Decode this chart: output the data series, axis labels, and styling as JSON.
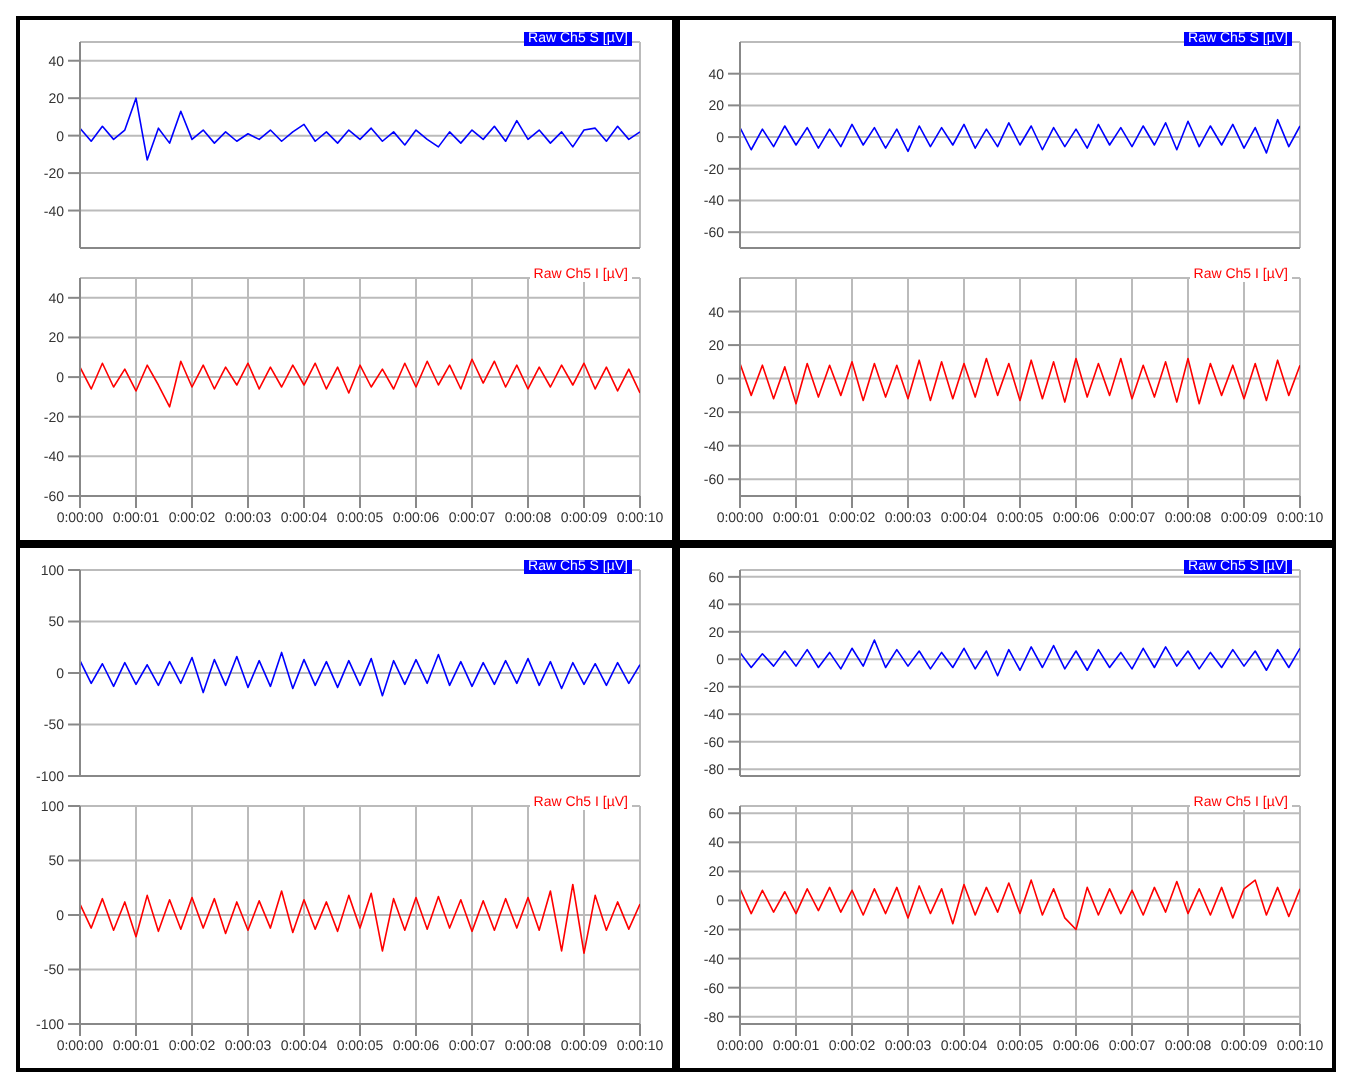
{
  "chart_data": [
    {
      "type": "line",
      "x": [
        0,
        0.2,
        0.4,
        0.6,
        0.8,
        1,
        1.2,
        1.4,
        1.6,
        1.8,
        2,
        2.2,
        2.4,
        2.6,
        2.8,
        3,
        3.2,
        3.4,
        3.6,
        3.8,
        4,
        4.2,
        4.4,
        4.6,
        4.8,
        5,
        5.2,
        5.4,
        5.6,
        5.8,
        6,
        6.2,
        6.4,
        6.6,
        6.8,
        7,
        7.2,
        7.4,
        7.6,
        7.8,
        8,
        8.2,
        8.4,
        8.6,
        8.8,
        9,
        9.2,
        9.4,
        9.6,
        9.8,
        10
      ],
      "series": [
        {
          "name": "Raw Ch5 S [µV]",
          "color": "#0000ff",
          "values": [
            4,
            -3,
            5,
            -2,
            3,
            20,
            -13,
            4,
            -4,
            13,
            -2,
            3,
            -4,
            2,
            -3,
            1,
            -2,
            3,
            -3,
            2,
            6,
            -3,
            2,
            -4,
            3,
            -2,
            4,
            -3,
            2,
            -5,
            3,
            -2,
            -6,
            2,
            -4,
            3,
            -2,
            5,
            -3,
            8,
            -2,
            3,
            -4,
            2,
            -6,
            3,
            4,
            -3,
            5,
            -2,
            2
          ]
        }
      ],
      "xlim": [
        0,
        10
      ],
      "xticks": [
        {
          "value": 0,
          "label": null
        },
        {
          "value": 1,
          "label": null
        },
        {
          "value": 2,
          "label": null
        },
        {
          "value": 3,
          "label": null
        },
        {
          "value": 4,
          "label": null
        },
        {
          "value": 5,
          "label": null
        },
        {
          "value": 6,
          "label": null
        },
        {
          "value": 7,
          "label": null
        },
        {
          "value": 8,
          "label": null
        },
        {
          "value": 9,
          "label": null
        },
        {
          "value": 10,
          "label": null
        }
      ],
      "ylim": [
        -60,
        50
      ],
      "yticks": [
        -40,
        -20,
        0,
        20,
        40
      ],
      "grid": true,
      "legend": "top right",
      "tick_labels": "y"
    },
    {
      "type": "line",
      "x": [
        0,
        0.2,
        0.4,
        0.6,
        0.8,
        1,
        1.2,
        1.4,
        1.6,
        1.8,
        2,
        2.2,
        2.4,
        2.6,
        2.8,
        3,
        3.2,
        3.4,
        3.6,
        3.8,
        4,
        4.2,
        4.4,
        4.6,
        4.8,
        5,
        5.2,
        5.4,
        5.6,
        5.8,
        6,
        6.2,
        6.4,
        6.6,
        6.8,
        7,
        7.2,
        7.4,
        7.6,
        7.8,
        8,
        8.2,
        8.4,
        8.6,
        8.8,
        9,
        9.2,
        9.4,
        9.6,
        9.8,
        10
      ],
      "series": [
        {
          "name": "Raw Ch5 I [µV]",
          "color": "#ff0000",
          "values": [
            5,
            -6,
            7,
            -5,
            4,
            -7,
            6,
            -4,
            -15,
            8,
            -5,
            6,
            -6,
            5,
            -4,
            7,
            -6,
            5,
            -5,
            6,
            -4,
            7,
            -6,
            5,
            -8,
            6,
            -5,
            4,
            -6,
            7,
            -5,
            8,
            -4,
            6,
            -6,
            9,
            -3,
            8,
            -5,
            6,
            -6,
            5,
            -5,
            6,
            -4,
            7,
            -6,
            5,
            -7,
            4,
            -8
          ]
        }
      ],
      "xlim": [
        0,
        10
      ],
      "xticks": [
        {
          "value": 0,
          "label": "0:00:00"
        },
        {
          "value": 1,
          "label": "0:00:01"
        },
        {
          "value": 2,
          "label": "0:00:02"
        },
        {
          "value": 3,
          "label": "0:00:03"
        },
        {
          "value": 4,
          "label": "0:00:04"
        },
        {
          "value": 5,
          "label": "0:00:05"
        },
        {
          "value": 6,
          "label": "0:00:06"
        },
        {
          "value": 7,
          "label": "0:00:07"
        },
        {
          "value": 8,
          "label": "0:00:08"
        },
        {
          "value": 9,
          "label": "0:00:09"
        },
        {
          "value": 10,
          "label": "0:00:10"
        }
      ],
      "ylim": [
        -60,
        50
      ],
      "yticks": [
        -60,
        -40,
        -20,
        0,
        20,
        40
      ],
      "grid": true,
      "legend": "top right"
    },
    {
      "type": "line",
      "x": [
        0,
        0.2,
        0.4,
        0.6,
        0.8,
        1,
        1.2,
        1.4,
        1.6,
        1.8,
        2,
        2.2,
        2.4,
        2.6,
        2.8,
        3,
        3.2,
        3.4,
        3.6,
        3.8,
        4,
        4.2,
        4.4,
        4.6,
        4.8,
        5,
        5.2,
        5.4,
        5.6,
        5.8,
        6,
        6.2,
        6.4,
        6.6,
        6.8,
        7,
        7.2,
        7.4,
        7.6,
        7.8,
        8,
        8.2,
        8.4,
        8.6,
        8.8,
        9,
        9.2,
        9.4,
        9.6,
        9.8,
        10
      ],
      "series": [
        {
          "name": "Raw Ch5 S [µV]",
          "color": "#0000ff",
          "values": [
            6,
            -8,
            5,
            -6,
            7,
            -5,
            6,
            -7,
            5,
            -6,
            8,
            -5,
            6,
            -7,
            5,
            -9,
            7,
            -6,
            6,
            -5,
            8,
            -7,
            5,
            -6,
            9,
            -5,
            7,
            -8,
            6,
            -6,
            5,
            -7,
            8,
            -5,
            6,
            -6,
            7,
            -5,
            9,
            -8,
            10,
            -6,
            7,
            -5,
            8,
            -7,
            6,
            -10,
            11,
            -6,
            7
          ]
        }
      ],
      "xlim": [
        0,
        10
      ],
      "xticks": [
        {
          "value": 0,
          "label": null
        },
        {
          "value": 1,
          "label": null
        },
        {
          "value": 2,
          "label": null
        },
        {
          "value": 3,
          "label": null
        },
        {
          "value": 4,
          "label": null
        },
        {
          "value": 5,
          "label": null
        },
        {
          "value": 6,
          "label": null
        },
        {
          "value": 7,
          "label": null
        },
        {
          "value": 8,
          "label": null
        },
        {
          "value": 9,
          "label": null
        },
        {
          "value": 10,
          "label": null
        }
      ],
      "ylim": [
        -70,
        60
      ],
      "yticks": [
        -60,
        -40,
        -20,
        0,
        20,
        40
      ],
      "grid": true,
      "legend": "top right",
      "tick_labels": "y"
    },
    {
      "type": "line",
      "x": [
        0,
        0.2,
        0.4,
        0.6,
        0.8,
        1,
        1.2,
        1.4,
        1.6,
        1.8,
        2,
        2.2,
        2.4,
        2.6,
        2.8,
        3,
        3.2,
        3.4,
        3.6,
        3.8,
        4,
        4.2,
        4.4,
        4.6,
        4.8,
        5,
        5.2,
        5.4,
        5.6,
        5.8,
        6,
        6.2,
        6.4,
        6.6,
        6.8,
        7,
        7.2,
        7.4,
        7.6,
        7.8,
        8,
        8.2,
        8.4,
        8.6,
        8.8,
        9,
        9.2,
        9.4,
        9.6,
        9.8,
        10
      ],
      "series": [
        {
          "name": "Raw Ch5 I [µV]",
          "color": "#ff0000",
          "values": [
            9,
            -10,
            8,
            -12,
            7,
            -15,
            9,
            -11,
            8,
            -10,
            10,
            -13,
            9,
            -11,
            8,
            -12,
            11,
            -13,
            10,
            -12,
            9,
            -11,
            12,
            -10,
            9,
            -13,
            11,
            -12,
            10,
            -14,
            12,
            -11,
            9,
            -10,
            12,
            -12,
            8,
            -11,
            10,
            -14,
            12,
            -15,
            9,
            -10,
            8,
            -12,
            9,
            -13,
            11,
            -10,
            8
          ]
        }
      ],
      "xlim": [
        0,
        10
      ],
      "xticks": [
        {
          "value": 0,
          "label": "0:00:00"
        },
        {
          "value": 1,
          "label": "0:00:01"
        },
        {
          "value": 2,
          "label": "0:00:02"
        },
        {
          "value": 3,
          "label": "0:00:03"
        },
        {
          "value": 4,
          "label": "0:00:04"
        },
        {
          "value": 5,
          "label": "0:00:05"
        },
        {
          "value": 6,
          "label": "0:00:06"
        },
        {
          "value": 7,
          "label": "0:00:07"
        },
        {
          "value": 8,
          "label": "0:00:08"
        },
        {
          "value": 9,
          "label": "0:00:09"
        },
        {
          "value": 10,
          "label": "0:00:10"
        }
      ],
      "ylim": [
        -70,
        60
      ],
      "yticks": [
        -60,
        -40,
        -20,
        0,
        20,
        40
      ],
      "grid": true,
      "legend": "top right"
    },
    {
      "type": "line",
      "x": [
        0,
        0.2,
        0.4,
        0.6,
        0.8,
        1,
        1.2,
        1.4,
        1.6,
        1.8,
        2,
        2.2,
        2.4,
        2.6,
        2.8,
        3,
        3.2,
        3.4,
        3.6,
        3.8,
        4,
        4.2,
        4.4,
        4.6,
        4.8,
        5,
        5.2,
        5.4,
        5.6,
        5.8,
        6,
        6.2,
        6.4,
        6.6,
        6.8,
        7,
        7.2,
        7.4,
        7.6,
        7.8,
        8,
        8.2,
        8.4,
        8.6,
        8.8,
        9,
        9.2,
        9.4,
        9.6,
        9.8,
        10
      ],
      "series": [
        {
          "name": "Raw Ch5 S [µV]",
          "color": "#0000ff",
          "values": [
            12,
            -10,
            9,
            -13,
            10,
            -11,
            8,
            -12,
            11,
            -10,
            15,
            -19,
            13,
            -12,
            16,
            -14,
            12,
            -13,
            20,
            -15,
            13,
            -12,
            11,
            -14,
            12,
            -12,
            14,
            -22,
            12,
            -11,
            13,
            -10,
            18,
            -12,
            11,
            -13,
            10,
            -11,
            12,
            -10,
            14,
            -12,
            11,
            -15,
            10,
            -11,
            9,
            -12,
            10,
            -10,
            8
          ]
        }
      ],
      "xlim": [
        0,
        10
      ],
      "xticks": [
        {
          "value": 0,
          "label": null
        },
        {
          "value": 1,
          "label": null
        },
        {
          "value": 2,
          "label": null
        },
        {
          "value": 3,
          "label": null
        },
        {
          "value": 4,
          "label": null
        },
        {
          "value": 5,
          "label": null
        },
        {
          "value": 6,
          "label": null
        },
        {
          "value": 7,
          "label": null
        },
        {
          "value": 8,
          "label": null
        },
        {
          "value": 9,
          "label": null
        },
        {
          "value": 10,
          "label": null
        }
      ],
      "ylim": [
        -100,
        100
      ],
      "yticks": [
        -100,
        -50,
        0,
        50,
        100
      ],
      "grid": true,
      "legend": "top right",
      "tick_labels": "y"
    },
    {
      "type": "line",
      "x": [
        0,
        0.2,
        0.4,
        0.6,
        0.8,
        1,
        1.2,
        1.4,
        1.6,
        1.8,
        2,
        2.2,
        2.4,
        2.6,
        2.8,
        3,
        3.2,
        3.4,
        3.6,
        3.8,
        4,
        4.2,
        4.4,
        4.6,
        4.8,
        5,
        5.2,
        5.4,
        5.6,
        5.8,
        6,
        6.2,
        6.4,
        6.6,
        6.8,
        7,
        7.2,
        7.4,
        7.6,
        7.8,
        8,
        8.2,
        8.4,
        8.6,
        8.8,
        9,
        9.2,
        9.4,
        9.6,
        9.8,
        10
      ],
      "series": [
        {
          "name": "Raw Ch5 I [µV]",
          "color": "#ff0000",
          "values": [
            10,
            -12,
            15,
            -14,
            12,
            -20,
            18,
            -15,
            14,
            -13,
            16,
            -12,
            15,
            -17,
            12,
            -14,
            13,
            -12,
            22,
            -16,
            14,
            -13,
            12,
            -15,
            18,
            -12,
            20,
            -33,
            15,
            -14,
            16,
            -13,
            17,
            -12,
            14,
            -15,
            13,
            -14,
            15,
            -12,
            16,
            -14,
            22,
            -33,
            28,
            -35,
            18,
            -14,
            12,
            -13,
            10
          ]
        }
      ],
      "xlim": [
        0,
        10
      ],
      "xticks": [
        {
          "value": 0,
          "label": "0:00:00"
        },
        {
          "value": 1,
          "label": "0:00:01"
        },
        {
          "value": 2,
          "label": "0:00:02"
        },
        {
          "value": 3,
          "label": "0:00:03"
        },
        {
          "value": 4,
          "label": "0:00:04"
        },
        {
          "value": 5,
          "label": "0:00:05"
        },
        {
          "value": 6,
          "label": "0:00:06"
        },
        {
          "value": 7,
          "label": "0:00:07"
        },
        {
          "value": 8,
          "label": "0:00:08"
        },
        {
          "value": 9,
          "label": "0:00:09"
        },
        {
          "value": 10,
          "label": "0:00:10"
        }
      ],
      "ylim": [
        -100,
        100
      ],
      "yticks": [
        -100,
        -50,
        0,
        50,
        100
      ],
      "grid": true,
      "legend": "top right"
    },
    {
      "type": "line",
      "x": [
        0,
        0.2,
        0.4,
        0.6,
        0.8,
        1,
        1.2,
        1.4,
        1.6,
        1.8,
        2,
        2.2,
        2.4,
        2.6,
        2.8,
        3,
        3.2,
        3.4,
        3.6,
        3.8,
        4,
        4.2,
        4.4,
        4.6,
        4.8,
        5,
        5.2,
        5.4,
        5.6,
        5.8,
        6,
        6.2,
        6.4,
        6.6,
        6.8,
        7,
        7.2,
        7.4,
        7.6,
        7.8,
        8,
        8.2,
        8.4,
        8.6,
        8.8,
        9,
        9.2,
        9.4,
        9.6,
        9.8,
        10
      ],
      "series": [
        {
          "name": "Raw Ch5 S [µV]",
          "color": "#0000ff",
          "values": [
            5,
            -6,
            4,
            -5,
            6,
            -5,
            7,
            -6,
            5,
            -7,
            8,
            -5,
            14,
            -6,
            7,
            -5,
            6,
            -7,
            5,
            -6,
            8,
            -7,
            6,
            -12,
            7,
            -8,
            9,
            -6,
            10,
            -7,
            6,
            -8,
            7,
            -6,
            5,
            -7,
            8,
            -6,
            9,
            -5,
            6,
            -7,
            5,
            -6,
            7,
            -5,
            6,
            -8,
            7,
            -6,
            8
          ]
        }
      ],
      "xlim": [
        0,
        10
      ],
      "xticks": [
        {
          "value": 0,
          "label": null
        },
        {
          "value": 1,
          "label": null
        },
        {
          "value": 2,
          "label": null
        },
        {
          "value": 3,
          "label": null
        },
        {
          "value": 4,
          "label": null
        },
        {
          "value": 5,
          "label": null
        },
        {
          "value": 6,
          "label": null
        },
        {
          "value": 7,
          "label": null
        },
        {
          "value": 8,
          "label": null
        },
        {
          "value": 9,
          "label": null
        },
        {
          "value": 10,
          "label": null
        }
      ],
      "ylim": [
        -85,
        65
      ],
      "yticks": [
        -80,
        -60,
        -40,
        -20,
        0,
        20,
        40,
        60
      ],
      "grid": true,
      "legend": "top right",
      "tick_labels": "y"
    },
    {
      "type": "line",
      "x": [
        0,
        0.2,
        0.4,
        0.6,
        0.8,
        1,
        1.2,
        1.4,
        1.6,
        1.8,
        2,
        2.2,
        2.4,
        2.6,
        2.8,
        3,
        3.2,
        3.4,
        3.6,
        3.8,
        4,
        4.2,
        4.4,
        4.6,
        4.8,
        5,
        5.2,
        5.4,
        5.6,
        5.8,
        6,
        6.2,
        6.4,
        6.6,
        6.8,
        7,
        7.2,
        7.4,
        7.6,
        7.8,
        8,
        8.2,
        8.4,
        8.6,
        8.8,
        9,
        9.2,
        9.4,
        9.6,
        9.8,
        10
      ],
      "series": [
        {
          "name": "Raw Ch5 I [µV]",
          "color": "#ff0000",
          "values": [
            8,
            -9,
            7,
            -8,
            6,
            -9,
            8,
            -7,
            9,
            -8,
            7,
            -10,
            8,
            -9,
            9,
            -12,
            10,
            -9,
            8,
            -16,
            11,
            -10,
            9,
            -8,
            12,
            -9,
            14,
            -10,
            8,
            -12,
            -20,
            9,
            -10,
            8,
            -9,
            7,
            -10,
            9,
            -8,
            13,
            -9,
            8,
            -10,
            9,
            -12,
            8,
            14,
            -10,
            9,
            -11,
            8
          ]
        }
      ],
      "xlim": [
        0,
        10
      ],
      "xticks": [
        {
          "value": 0,
          "label": "0:00:00"
        },
        {
          "value": 1,
          "label": "0:00:01"
        },
        {
          "value": 2,
          "label": "0:00:02"
        },
        {
          "value": 3,
          "label": "0:00:03"
        },
        {
          "value": 4,
          "label": "0:00:04"
        },
        {
          "value": 5,
          "label": "0:00:05"
        },
        {
          "value": 6,
          "label": "0:00:06"
        },
        {
          "value": 7,
          "label": "0:00:07"
        },
        {
          "value": 8,
          "label": "0:00:08"
        },
        {
          "value": 9,
          "label": "0:00:09"
        },
        {
          "value": 10,
          "label": "0:00:10"
        }
      ],
      "ylim": [
        -85,
        65
      ],
      "yticks": [
        -80,
        -60,
        -40,
        -20,
        0,
        20,
        40,
        60
      ],
      "grid": true,
      "legend": "top right"
    }
  ]
}
